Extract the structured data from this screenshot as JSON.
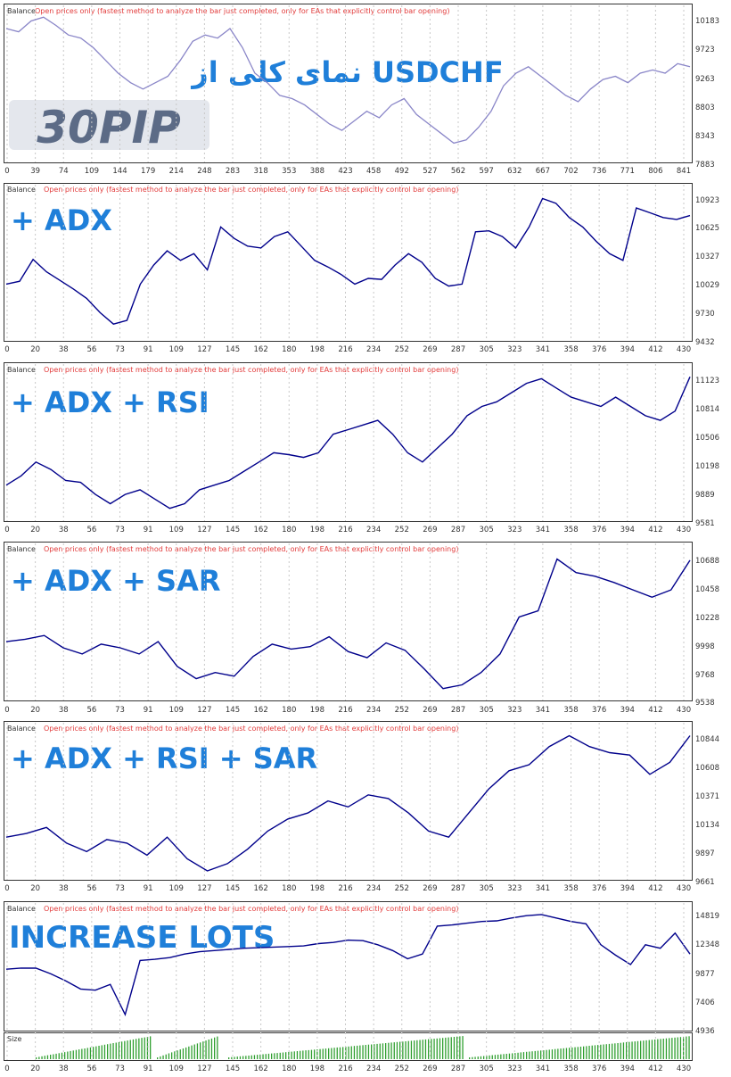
{
  "header_label": "Balance",
  "header_separator": " / ",
  "header_note": "Open prices only (fastest method to analyze the bar just completed, only for EAs that explicitly control bar opening)",
  "size_label": "Size",
  "logo_text": "30PIP",
  "colors": {
    "overview_line": "#8a86c8",
    "balance_line": "#00008b",
    "note_text": "#e23b3b",
    "title_text": "#1f7fd9",
    "size_bars": "#2f9f2f",
    "grid": "#c8c8c8"
  },
  "chart_data": [
    {
      "type": "line",
      "title": "نمای کلی از USDCHF",
      "series": [
        {
          "values": [
            10000,
            9950,
            10120,
            10180,
            10050,
            9900,
            9850,
            9700,
            9500,
            9300,
            9150,
            9050,
            9150,
            9250,
            9500,
            9800,
            9900,
            9850,
            10000,
            9700,
            9300,
            9150,
            8950,
            8900,
            8800,
            8650,
            8500,
            8400,
            8550,
            8700,
            8600,
            8800,
            8900,
            8650,
            8500,
            8350,
            8200,
            8250,
            8450,
            8700,
            9100,
            9300,
            9400,
            9250,
            9100,
            8950,
            8850,
            9050,
            9200,
            9250,
            9150,
            9300,
            9350,
            9300,
            9450,
            9400
          ]
        }
      ],
      "x_ticks": [
        "0",
        "39",
        "74",
        "109",
        "144",
        "179",
        "214",
        "248",
        "283",
        "318",
        "353",
        "388",
        "423",
        "458",
        "492",
        "527",
        "562",
        "597",
        "632",
        "667",
        "702",
        "736",
        "771",
        "806",
        "841"
      ],
      "y_ticks": [
        "10183",
        "9723",
        "9263",
        "8803",
        "8343",
        "7883"
      ],
      "ylim": [
        7883,
        10183
      ]
    },
    {
      "type": "line",
      "title": "+ ADX",
      "series": [
        {
          "values": [
            10000,
            10030,
            10260,
            10130,
            10040,
            9950,
            9850,
            9700,
            9580,
            9620,
            10000,
            10200,
            10350,
            10250,
            10320,
            10150,
            10600,
            10480,
            10400,
            10380,
            10500,
            10550,
            10400,
            10250,
            10180,
            10100,
            10000,
            10060,
            10050,
            10200,
            10320,
            10230,
            10060,
            9980,
            10000,
            10550,
            10560,
            10500,
            10380,
            10600,
            10900,
            10850,
            10700,
            10600,
            10450,
            10320,
            10250,
            10800,
            10750,
            10700,
            10680,
            10720
          ]
        }
      ],
      "x_ticks": [
        "0",
        "20",
        "38",
        "56",
        "73",
        "91",
        "109",
        "127",
        "145",
        "162",
        "180",
        "198",
        "216",
        "234",
        "252",
        "269",
        "287",
        "305",
        "323",
        "341",
        "358",
        "376",
        "394",
        "412",
        "430"
      ],
      "y_ticks": [
        "10923",
        "10625",
        "10327",
        "10029",
        "9730",
        "9432"
      ],
      "ylim": [
        9432,
        10923
      ]
    },
    {
      "type": "line",
      "title": "+ ADX + RSI",
      "series": [
        {
          "values": [
            9950,
            10050,
            10200,
            10120,
            10000,
            9980,
            9850,
            9750,
            9850,
            9900,
            9800,
            9700,
            9750,
            9900,
            9950,
            10000,
            10100,
            10200,
            10300,
            10280,
            10250,
            10300,
            10500,
            10550,
            10600,
            10650,
            10500,
            10300,
            10200,
            10350,
            10500,
            10700,
            10800,
            10850,
            10950,
            11050,
            11100,
            11000,
            10900,
            10850,
            10800,
            10900,
            10800,
            10700,
            10650,
            10750,
            11120
          ]
        }
      ],
      "x_ticks": [
        "0",
        "20",
        "38",
        "56",
        "73",
        "91",
        "109",
        "127",
        "145",
        "162",
        "180",
        "198",
        "216",
        "234",
        "252",
        "269",
        "287",
        "305",
        "323",
        "341",
        "358",
        "376",
        "394",
        "412",
        "430"
      ],
      "y_ticks": [
        "11123",
        "10814",
        "10506",
        "10198",
        "9889",
        "9581"
      ],
      "ylim": [
        9581,
        11123
      ]
    },
    {
      "type": "line",
      "title": "+ ADX + SAR",
      "series": [
        {
          "values": [
            10000,
            10020,
            10050,
            9950,
            9900,
            9980,
            9950,
            9900,
            10000,
            9800,
            9700,
            9750,
            9720,
            9880,
            9980,
            9940,
            9960,
            10040,
            9920,
            9870,
            9990,
            9930,
            9780,
            9620,
            9650,
            9750,
            9900,
            10200,
            10250,
            10670,
            10560,
            10530,
            10480,
            10420,
            10360,
            10420,
            10660
          ]
        }
      ],
      "x_ticks": [
        "0",
        "20",
        "38",
        "56",
        "73",
        "91",
        "109",
        "127",
        "145",
        "162",
        "180",
        "198",
        "216",
        "234",
        "252",
        "269",
        "287",
        "305",
        "323",
        "341",
        "358",
        "376",
        "394",
        "412",
        "430"
      ],
      "y_ticks": [
        "10688",
        "10458",
        "10228",
        "9998",
        "9768",
        "9538"
      ],
      "ylim": [
        9538,
        10688
      ]
    },
    {
      "type": "line",
      "title": "+ ADX + RSI + SAR",
      "series": [
        {
          "values": [
            10000,
            10030,
            10080,
            9950,
            9880,
            9980,
            9950,
            9850,
            10000,
            9820,
            9720,
            9780,
            9900,
            10050,
            10150,
            10200,
            10300,
            10250,
            10350,
            10320,
            10200,
            10050,
            10000,
            10200,
            10400,
            10550,
            10600,
            10750,
            10840,
            10750,
            10700,
            10680,
            10520,
            10620,
            10840
          ]
        }
      ],
      "x_ticks": [
        "0",
        "20",
        "38",
        "56",
        "73",
        "91",
        "109",
        "127",
        "145",
        "162",
        "180",
        "198",
        "216",
        "234",
        "252",
        "269",
        "287",
        "305",
        "323",
        "341",
        "358",
        "376",
        "394",
        "412",
        "430"
      ],
      "y_ticks": [
        "10844",
        "10608",
        "10371",
        "10134",
        "9897",
        "9661"
      ],
      "ylim": [
        9661,
        10844
      ]
    },
    {
      "type": "line",
      "title": "INCREASE LOTS",
      "series": [
        {
          "values": [
            9900,
            10000,
            9990,
            9500,
            8900,
            8200,
            8100,
            8600,
            6000,
            10650,
            10750,
            10900,
            11200,
            11400,
            11500,
            11600,
            11700,
            11750,
            11800,
            11850,
            11900,
            12100,
            12200,
            12400,
            12350,
            12000,
            11500,
            10800,
            11200,
            13600,
            13700,
            13850,
            14000,
            14050,
            14300,
            14500,
            14600,
            14300,
            14000,
            13800,
            12000,
            11100,
            10300,
            12000,
            11700,
            13000,
            11200
          ]
        }
      ],
      "x_ticks": [
        "0",
        "20",
        "38",
        "56",
        "73",
        "91",
        "109",
        "127",
        "145",
        "162",
        "180",
        "198",
        "216",
        "234",
        "252",
        "269",
        "287",
        "305",
        "323",
        "341",
        "358",
        "376",
        "394",
        "412",
        "430"
      ],
      "y_ticks": [
        "14819",
        "12348",
        "9877",
        "7406",
        "4936"
      ],
      "ylim": [
        4936,
        14819
      ]
    }
  ]
}
